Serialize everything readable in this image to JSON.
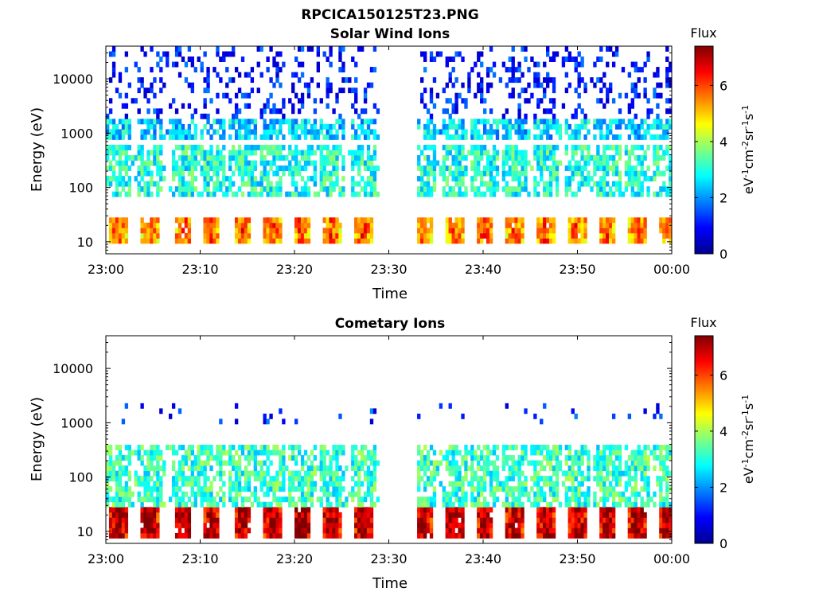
{
  "figure": {
    "filename": "RPCICA150125T23.PNG"
  },
  "chart_data": [
    {
      "type": "heatmap",
      "title": "Solar Wind Ions",
      "xlabel": "Time",
      "ylabel": "Energy (eV)",
      "yscale": "log",
      "ylim": [
        6,
        40000
      ],
      "xlim": [
        "23:00",
        "00:00"
      ],
      "x_ticks": [
        "23:00",
        "23:10",
        "23:20",
        "23:30",
        "23:40",
        "23:50",
        "00:00"
      ],
      "y_ticks": [
        "10",
        "100",
        "1000",
        "10000"
      ],
      "colorbar": {
        "title": "Flux",
        "label": "eV-1cm-2sr-1s-1",
        "ticks": [
          "0",
          "2",
          "4",
          "6"
        ],
        "range": [
          0,
          7.4
        ],
        "colormap": "jet"
      },
      "data_gap_minutes": [
        28.8,
        33.0
      ],
      "sweep_times_minutes": [
        1.2,
        4.5,
        8.1,
        11.0,
        14.3,
        17.5,
        20.6,
        23.8,
        27.1,
        33.5,
        36.8,
        40.0,
        43.2,
        46.5,
        49.8,
        53.0,
        56.2,
        59.4
      ],
      "signal_bands": [
        {
          "energy_range_eV": [
            10,
            30
          ],
          "flux": 5.0,
          "description": "low-energy band"
        },
        {
          "energy_range_eV": [
            70,
            600
          ],
          "flux": 3.0
        },
        {
          "energy_range_eV": [
            700,
            2000
          ],
          "flux": 2.5
        },
        {
          "energy_range_eV": [
            2000,
            40000
          ],
          "flux": 1.0,
          "sparse": true
        }
      ]
    },
    {
      "type": "heatmap",
      "title": "Cometary Ions",
      "xlabel": "Time",
      "ylabel": "Energy (eV)",
      "yscale": "log",
      "ylim": [
        6,
        40000
      ],
      "xlim": [
        "23:00",
        "00:00"
      ],
      "x_ticks": [
        "23:00",
        "23:10",
        "23:20",
        "23:30",
        "23:40",
        "23:50",
        "00:00"
      ],
      "y_ticks": [
        "10",
        "100",
        "1000",
        "10000"
      ],
      "colorbar": {
        "title": "Flux",
        "label": "eV-1cm-2sr-1s-1",
        "ticks": [
          "0",
          "2",
          "4",
          "6"
        ],
        "range": [
          0,
          7.4
        ],
        "colormap": "jet"
      },
      "data_gap_minutes": [
        28.8,
        33.0
      ],
      "sweep_times_minutes": [
        1.2,
        4.5,
        8.1,
        11.0,
        14.3,
        17.5,
        20.6,
        23.8,
        27.1,
        33.5,
        36.8,
        40.0,
        43.2,
        46.5,
        49.8,
        53.0,
        56.2,
        59.4
      ],
      "signal_bands": [
        {
          "energy_range_eV": [
            7,
            30
          ],
          "flux": 6.3,
          "description": "dense low-energy band"
        },
        {
          "energy_range_eV": [
            30,
            400
          ],
          "flux": 3.2
        },
        {
          "energy_range_eV": [
            1000,
            2200
          ],
          "flux": 1.2,
          "sparse": true
        }
      ]
    }
  ]
}
